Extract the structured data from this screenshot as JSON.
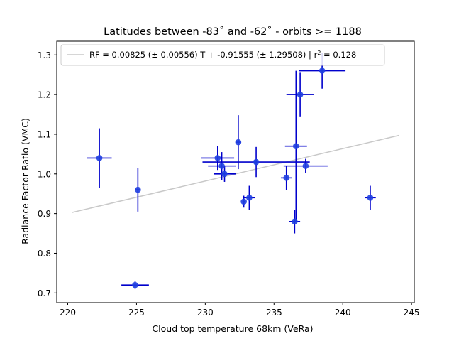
{
  "chart_data": {
    "type": "scatter",
    "title": "Latitudes between -83˚ and -62˚ - orbits >= 1188",
    "xlabel": "Cloud top temperature 68km (VeRa)",
    "ylabel": "Radiance Factor Ratio (VMC)",
    "xlim": [
      219.2,
      245.2
    ],
    "ylim": [
      0.6755,
      1.3345
    ],
    "xticks": [
      220,
      225,
      230,
      235,
      240,
      245
    ],
    "yticks": [
      0.7,
      0.8,
      0.9,
      1.0,
      1.1,
      1.2,
      1.3
    ],
    "xtick_labels": [
      "220",
      "225",
      "230",
      "235",
      "240",
      "245"
    ],
    "ytick_labels": [
      "0.7",
      "0.8",
      "0.9",
      "1.0",
      "1.1",
      "1.2",
      "1.3"
    ],
    "grid": false,
    "legend_position": "top-left",
    "legend_label": "RF = 0.00825 (± 0.00556) T + -0.91555 (± 1.29508) | r",
    "legend_sup": "2",
    "legend_tail": " = 0.128",
    "fit_line": {
      "x": [
        220.3,
        244.1
      ],
      "y": [
        0.9027,
        1.0973
      ],
      "color": "#c8c8c8"
    },
    "point_color": "#1f3fe0",
    "error_color": "#0000cc",
    "points": [
      {
        "x": 222.3,
        "y": 1.04,
        "xerr": 0.9,
        "yerr": 0.075
      },
      {
        "x": 225.1,
        "y": 0.96,
        "xerr": 0.2,
        "yerr": 0.055
      },
      {
        "x": 224.9,
        "y": 0.72,
        "xerr": 1.0,
        "yerr": 0.01
      },
      {
        "x": 230.9,
        "y": 1.04,
        "xerr": 1.2,
        "yerr": 0.03
      },
      {
        "x": 231.2,
        "y": 1.02,
        "xerr": 1.0,
        "yerr": 0.035
      },
      {
        "x": 231.4,
        "y": 1.0,
        "xerr": 0.8,
        "yerr": 0.02
      },
      {
        "x": 232.4,
        "y": 1.08,
        "xerr": 0.2,
        "yerr": 0.068
      },
      {
        "x": 232.8,
        "y": 0.93,
        "xerr": 0.1,
        "yerr": 0.015
      },
      {
        "x": 233.2,
        "y": 0.94,
        "xerr": 0.4,
        "yerr": 0.03
      },
      {
        "x": 233.7,
        "y": 1.03,
        "xerr": 3.9,
        "yerr": 0.038
      },
      {
        "x": 235.9,
        "y": 0.99,
        "xerr": 0.4,
        "yerr": 0.03
      },
      {
        "x": 236.5,
        "y": 0.88,
        "xerr": 0.4,
        "yerr": 0.03
      },
      {
        "x": 236.6,
        "y": 1.07,
        "xerr": 0.8,
        "yerr": 0.19
      },
      {
        "x": 236.9,
        "y": 1.2,
        "xerr": 1.0,
        "yerr": 0.055
      },
      {
        "x": 237.3,
        "y": 1.02,
        "xerr": 1.6,
        "yerr": 0.018
      },
      {
        "x": 238.5,
        "y": 1.26,
        "xerr": 1.7,
        "yerr": 0.045
      },
      {
        "x": 242.0,
        "y": 0.94,
        "xerr": 0.4,
        "yerr": 0.03
      }
    ]
  }
}
